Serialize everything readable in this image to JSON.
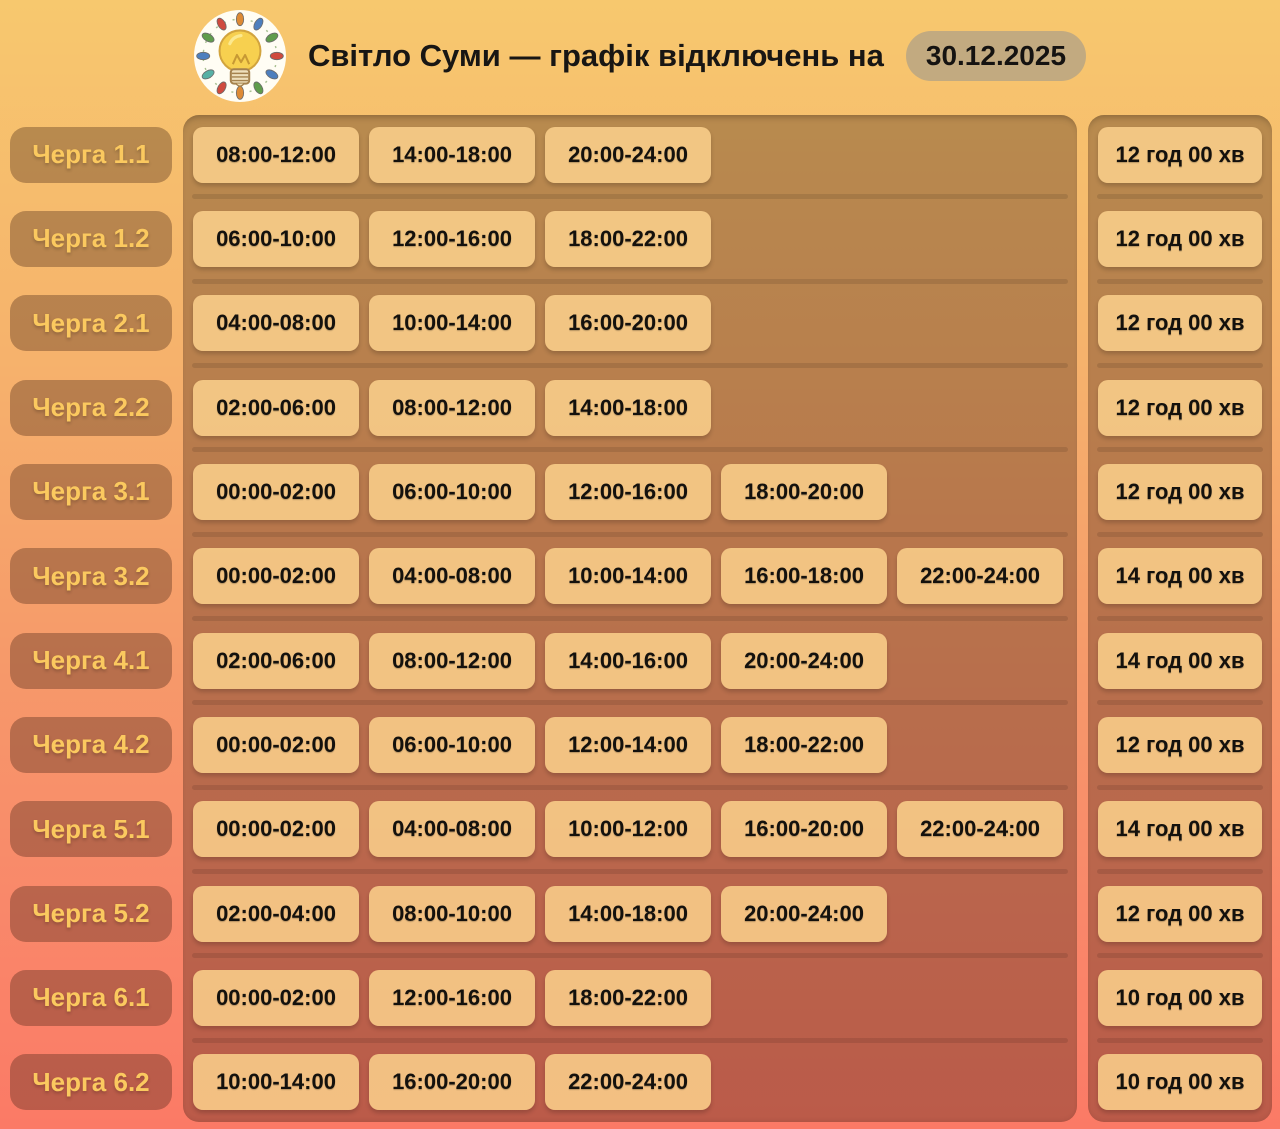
{
  "header": {
    "logo_icon": "lightbulb-garland-logo",
    "title": "Світло Суми — графік відключень на",
    "date_badge": "30.12.2025"
  },
  "colors": {
    "bg_top": "#f7c86e",
    "bg_bottom": "#fb7a66",
    "panel_overlay": "rgba(58,28,16,0.33)",
    "chip_bg": "rgba(252,209,140,0.86)",
    "queue_label": "#fbc95f",
    "date_badge_bg": "#c2aa80",
    "text_dark": "#181614"
  },
  "queues": [
    {
      "label": "Черга 1.1",
      "intervals": [
        "08:00-12:00",
        "14:00-18:00",
        "20:00-24:00"
      ],
      "total": "12 год 00 хв"
    },
    {
      "label": "Черга 1.2",
      "intervals": [
        "06:00-10:00",
        "12:00-16:00",
        "18:00-22:00"
      ],
      "total": "12 год 00 хв"
    },
    {
      "label": "Черга 2.1",
      "intervals": [
        "04:00-08:00",
        "10:00-14:00",
        "16:00-20:00"
      ],
      "total": "12 год 00 хв"
    },
    {
      "label": "Черга 2.2",
      "intervals": [
        "02:00-06:00",
        "08:00-12:00",
        "14:00-18:00"
      ],
      "total": "12 год 00 хв"
    },
    {
      "label": "Черга 3.1",
      "intervals": [
        "00:00-02:00",
        "06:00-10:00",
        "12:00-16:00",
        "18:00-20:00"
      ],
      "total": "12 год 00 хв"
    },
    {
      "label": "Черга 3.2",
      "intervals": [
        "00:00-02:00",
        "04:00-08:00",
        "10:00-14:00",
        "16:00-18:00",
        "22:00-24:00"
      ],
      "total": "14 год 00 хв"
    },
    {
      "label": "Черга 4.1",
      "intervals": [
        "02:00-06:00",
        "08:00-12:00",
        "14:00-16:00",
        "20:00-24:00"
      ],
      "total": "14 год 00 хв"
    },
    {
      "label": "Черга 4.2",
      "intervals": [
        "00:00-02:00",
        "06:00-10:00",
        "12:00-14:00",
        "18:00-22:00"
      ],
      "total": "12 год 00 хв"
    },
    {
      "label": "Черга 5.1",
      "intervals": [
        "00:00-02:00",
        "04:00-08:00",
        "10:00-12:00",
        "16:00-20:00",
        "22:00-24:00"
      ],
      "total": "14 год 00 хв"
    },
    {
      "label": "Черга 5.2",
      "intervals": [
        "02:00-04:00",
        "08:00-10:00",
        "14:00-18:00",
        "20:00-24:00"
      ],
      "total": "12 год 00 хв"
    },
    {
      "label": "Черга 6.1",
      "intervals": [
        "00:00-02:00",
        "12:00-16:00",
        "18:00-22:00"
      ],
      "total": "10 год 00 хв"
    },
    {
      "label": "Черга 6.2",
      "intervals": [
        "10:00-14:00",
        "16:00-20:00",
        "22:00-24:00"
      ],
      "total": "10 год 00 хв"
    }
  ]
}
